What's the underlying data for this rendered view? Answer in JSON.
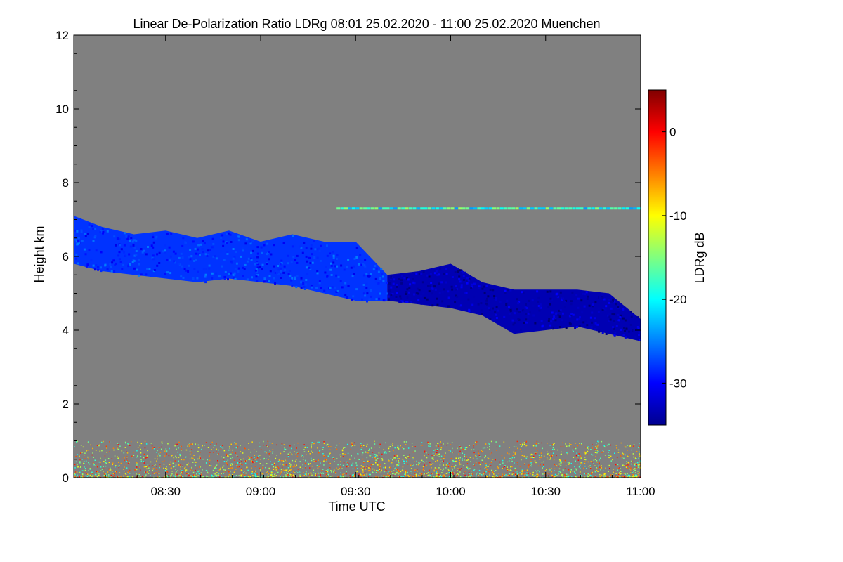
{
  "chart_data": {
    "type": "heatmap",
    "title": "Linear De-Polarization Ratio LDRg   08:01 25.02.2020 - 11:00 25.02.2020 Muenchen",
    "xlabel": "Time UTC",
    "ylabel": "Height km",
    "xlim": [
      "08:01",
      "11:00"
    ],
    "ylim": [
      0,
      12
    ],
    "x_ticks": [
      "08:30",
      "09:00",
      "09:30",
      "10:00",
      "10:30",
      "11:00"
    ],
    "y_ticks": [
      0,
      2,
      4,
      6,
      8,
      10,
      12
    ],
    "colorbar": {
      "label": "LDRg dB",
      "range": [
        -35,
        5
      ],
      "ticks": [
        0,
        -10,
        -20,
        -30
      ],
      "colormap": "jet"
    },
    "background_color": "#808080",
    "features": {
      "cloud_layer": {
        "x": [
          "08:01",
          "08:10",
          "08:20",
          "08:30",
          "08:40",
          "08:50",
          "09:00",
          "09:10",
          "09:20",
          "09:30",
          "09:40",
          "09:50",
          "10:00",
          "10:10",
          "10:20",
          "10:30",
          "10:40",
          "10:50",
          "11:00"
        ],
        "top_km": [
          7.1,
          6.8,
          6.6,
          6.7,
          6.5,
          6.7,
          6.4,
          6.6,
          6.4,
          6.4,
          5.5,
          5.6,
          5.8,
          5.3,
          5.1,
          5.1,
          5.1,
          5.0,
          4.3
        ],
        "base_km": [
          5.8,
          5.6,
          5.5,
          5.4,
          5.3,
          5.4,
          5.3,
          5.2,
          5.0,
          4.8,
          4.8,
          4.7,
          4.6,
          4.4,
          3.9,
          4.0,
          4.1,
          3.9,
          3.7
        ],
        "ldr_db_first_segment": -28,
        "ldr_db_second_segment": -33
      },
      "stripe_layer": {
        "height_km": 7.3,
        "x_start": "09:24",
        "x_end": "11:00",
        "ldr_db": -20
      },
      "near_surface_noise": {
        "height_range_km": [
          0,
          1.0
        ],
        "ldr_db_range": [
          -20,
          0
        ]
      }
    }
  }
}
